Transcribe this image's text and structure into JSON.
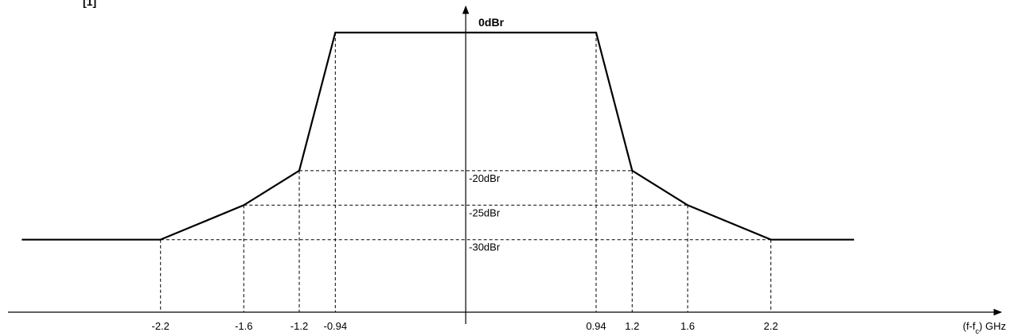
{
  "top_fragment": "[1]",
  "chart_data": {
    "type": "line",
    "title": "",
    "xlabel": "(f-f",
    "xlabel_subscript": "c",
    "xlabel_unit": ") GHz",
    "ylabel": "0dBr",
    "series": [
      {
        "x": [
          -3.2,
          -2.2,
          -1.6,
          -1.2,
          -0.94,
          0.94,
          1.2,
          1.6,
          2.2,
          2.8
        ],
        "y": [
          -30,
          -30,
          -25,
          -20,
          0,
          0,
          -20,
          -25,
          -30,
          -30
        ]
      }
    ],
    "x_ticks": [
      {
        "value": -2.2,
        "label": "-2.2"
      },
      {
        "value": -1.6,
        "label": "-1.6"
      },
      {
        "value": -1.2,
        "label": "-1.2"
      },
      {
        "value": -0.94,
        "label": "-0.94"
      },
      {
        "value": 0.94,
        "label": "0.94"
      },
      {
        "value": 1.2,
        "label": "1.2"
      },
      {
        "value": 1.6,
        "label": "1.6"
      },
      {
        "value": 2.2,
        "label": "2.2"
      }
    ],
    "levels": [
      {
        "value": -20,
        "label": "-20dBr",
        "x_from": -1.2,
        "x_to": 1.2
      },
      {
        "value": -25,
        "label": "-25dBr",
        "x_from": -1.6,
        "x_to": 1.6
      },
      {
        "value": -30,
        "label": "-30dBr",
        "x_from": -2.2,
        "x_to": 2.2
      }
    ],
    "xlim": [
      -3.3,
      3.7
    ],
    "ylim": [
      -40.5,
      0
    ],
    "grid": false,
    "line_color": "#000000",
    "guide_style": "dashed"
  }
}
